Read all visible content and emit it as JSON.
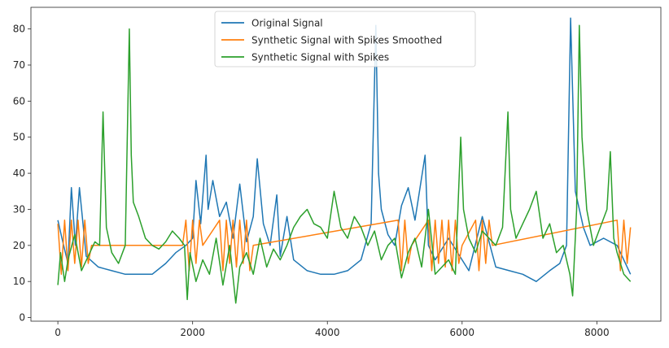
{
  "chart_data": {
    "type": "line",
    "title": "",
    "xlabel": "",
    "ylabel": "",
    "xlim": [
      -400,
      8950
    ],
    "ylim": [
      -1,
      86
    ],
    "x_ticks": [
      0,
      2000,
      4000,
      6000,
      8000
    ],
    "y_ticks": [
      0,
      10,
      20,
      30,
      40,
      50,
      60,
      70,
      80
    ],
    "grid": false,
    "legend_position": "top-center",
    "series": [
      {
        "name": "Original Signal",
        "color": "#1f77b4",
        "x": [
          0,
          60,
          150,
          200,
          260,
          320,
          420,
          600,
          800,
          1000,
          1200,
          1400,
          1600,
          1750,
          1900,
          2000,
          2050,
          2120,
          2200,
          2230,
          2300,
          2400,
          2500,
          2600,
          2700,
          2800,
          2900,
          2960,
          3050,
          3150,
          3250,
          3300,
          3400,
          3500,
          3700,
          3900,
          4100,
          4300,
          4500,
          4650,
          4720,
          4760,
          4800,
          4900,
          5000,
          5100,
          5200,
          5300,
          5450,
          5500,
          5600,
          5800,
          6000,
          6100,
          6300,
          6500,
          6700,
          6900,
          7100,
          7300,
          7450,
          7550,
          7610,
          7680,
          7800,
          7900,
          8100,
          8300,
          8500
        ],
        "values": [
          27,
          22,
          15,
          36,
          20,
          36,
          17,
          14,
          13,
          12,
          12,
          12,
          15,
          18,
          20,
          22,
          38,
          26,
          45,
          30,
          38,
          28,
          32,
          22,
          37,
          21,
          28,
          44,
          26,
          20,
          34,
          17,
          28,
          16,
          13,
          12,
          12,
          13,
          16,
          26,
          81,
          40,
          30,
          23,
          20,
          31,
          36,
          27,
          45,
          20,
          16,
          22,
          16,
          13,
          28,
          14,
          13,
          12,
          10,
          13,
          15,
          20,
          83,
          35,
          25,
          20,
          22,
          20,
          12
        ]
      },
      {
        "name": "Synthetic Signal with Spikes Smoothed",
        "color": "#ff7f0e",
        "x": [
          0,
          50,
          100,
          150,
          200,
          250,
          300,
          350,
          400,
          450,
          500,
          1850,
          1900,
          1950,
          2000,
          2050,
          2100,
          2150,
          2400,
          2450,
          2500,
          2550,
          2600,
          2650,
          2700,
          2750,
          2800,
          2850,
          2900,
          5050,
          5100,
          5150,
          5200,
          5250,
          5500,
          5550,
          5600,
          5650,
          5700,
          5750,
          5800,
          5850,
          5900,
          5950,
          6000,
          6200,
          6250,
          6300,
          6350,
          6400,
          6450,
          8300,
          8350,
          8400,
          8450,
          8500
        ],
        "values": [
          26,
          12,
          27,
          13,
          27,
          15,
          27,
          14,
          27,
          15,
          20,
          20,
          27,
          13,
          27,
          15,
          27,
          20,
          27,
          13,
          27,
          15,
          27,
          14,
          27,
          15,
          27,
          13,
          20,
          27,
          13,
          27,
          15,
          20,
          27,
          13,
          27,
          15,
          27,
          14,
          27,
          13,
          27,
          15,
          20,
          27,
          13,
          27,
          15,
          27,
          20,
          27,
          13,
          27,
          15,
          25
        ]
      },
      {
        "name": "Synthetic Signal with Spikes",
        "color": "#2ca02c",
        "x": [
          0,
          40,
          100,
          150,
          250,
          350,
          450,
          550,
          620,
          670,
          720,
          800,
          900,
          1000,
          1060,
          1090,
          1120,
          1200,
          1300,
          1400,
          1500,
          1600,
          1700,
          1800,
          1880,
          1920,
          1960,
          2050,
          2150,
          2250,
          2350,
          2450,
          2550,
          2640,
          2700,
          2800,
          2900,
          3000,
          3100,
          3200,
          3300,
          3400,
          3500,
          3600,
          3700,
          3800,
          3900,
          4000,
          4100,
          4200,
          4300,
          4400,
          4500,
          4600,
          4700,
          4800,
          4900,
          5000,
          5100,
          5200,
          5300,
          5400,
          5500,
          5600,
          5700,
          5800,
          5900,
          5980,
          6020,
          6100,
          6200,
          6300,
          6400,
          6500,
          6600,
          6680,
          6720,
          6800,
          6900,
          7000,
          7100,
          7200,
          7300,
          7400,
          7500,
          7600,
          7640,
          7700,
          7740,
          7780,
          7850,
          7950,
          8050,
          8150,
          8200,
          8250,
          8300,
          8400,
          8500
        ],
        "values": [
          9,
          18,
          10,
          16,
          23,
          13,
          17,
          21,
          20,
          57,
          25,
          18,
          15,
          20,
          80,
          45,
          32,
          28,
          22,
          20,
          19,
          21,
          24,
          22,
          20,
          5,
          18,
          10,
          16,
          12,
          22,
          9,
          20,
          4,
          14,
          18,
          12,
          22,
          14,
          19,
          16,
          20,
          25,
          28,
          30,
          26,
          25,
          22,
          35,
          25,
          22,
          28,
          25,
          20,
          24,
          16,
          20,
          22,
          11,
          18,
          22,
          14,
          30,
          12,
          14,
          16,
          12,
          50,
          30,
          22,
          18,
          24,
          22,
          20,
          25,
          57,
          30,
          22,
          26,
          30,
          35,
          22,
          26,
          18,
          20,
          12,
          6,
          30,
          81,
          50,
          30,
          20,
          25,
          30,
          46,
          22,
          18,
          12,
          10
        ]
      }
    ]
  }
}
